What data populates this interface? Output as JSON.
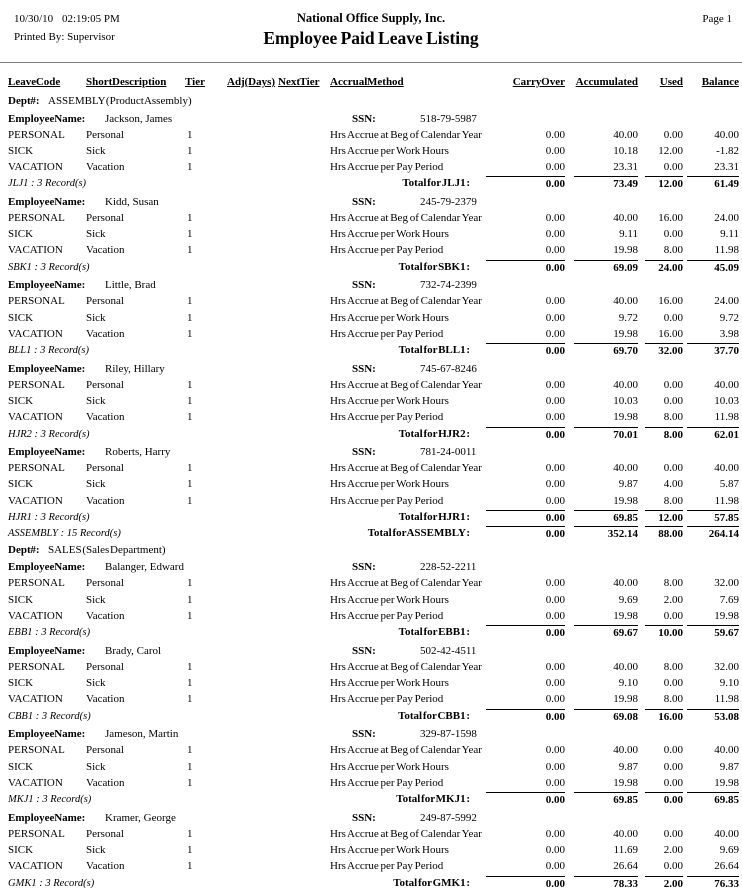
{
  "header": {
    "date": "10/30/10",
    "time": "02:19:05 PM",
    "printed_by": "Printed By: Supervisor",
    "company": "National Office Supply, Inc.",
    "title": "Employee Paid Leave Listing",
    "page": "Page 1"
  },
  "columns": {
    "leave_code": "Leave Code",
    "short_description": "Short Description",
    "tier": "Tier",
    "adj_days": "Adj (Days)",
    "next_tier": "Next Tier",
    "accrual_method": "Accrual Method",
    "carry_over": "Carry Over",
    "accumulated": "Accumulated",
    "used": "Used",
    "balance": "Balance"
  },
  "labels": {
    "dept": "Dept #:",
    "employee_name": "Employee Name:",
    "ssn": "SSN:"
  },
  "departments": [
    {
      "name": "ASSEMBLY (Product Assembly)",
      "employees": [
        {
          "name": "Jackson, James",
          "ssn": "518-79-5987",
          "rows": [
            {
              "code": "PERSONAL",
              "desc": "Personal",
              "tier": "1",
              "accrual": "Hrs Accrue at Beg of Calendar Year",
              "carry": "0.00",
              "accum": "40.00",
              "used": "0.00",
              "bal": "40.00"
            },
            {
              "code": "SICK",
              "desc": "Sick",
              "tier": "1",
              "accrual": "Hrs Accrue per Work Hours",
              "carry": "0.00",
              "accum": "10.18",
              "used": "12.00",
              "bal": "-1.82"
            },
            {
              "code": "VACATION",
              "desc": "Vacation",
              "tier": "1",
              "accrual": "Hrs Accrue per Pay Period",
              "carry": "0.00",
              "accum": "23.31",
              "used": "0.00",
              "bal": "23.31"
            }
          ],
          "record_note": "JLJ1 : 3 Record(s)",
          "total_label": "Total for JLJ1 :",
          "totals": {
            "carry": "0.00",
            "accum": "73.49",
            "used": "12.00",
            "bal": "61.49"
          }
        },
        {
          "name": "Kidd, Susan",
          "ssn": "245-79-2379",
          "rows": [
            {
              "code": "PERSONAL",
              "desc": "Personal",
              "tier": "1",
              "accrual": "Hrs Accrue at Beg of Calendar Year",
              "carry": "0.00",
              "accum": "40.00",
              "used": "16.00",
              "bal": "24.00"
            },
            {
              "code": "SICK",
              "desc": "Sick",
              "tier": "1",
              "accrual": "Hrs Accrue per Work Hours",
              "carry": "0.00",
              "accum": "9.11",
              "used": "0.00",
              "bal": "9.11"
            },
            {
              "code": "VACATION",
              "desc": "Vacation",
              "tier": "1",
              "accrual": "Hrs Accrue per Pay Period",
              "carry": "0.00",
              "accum": "19.98",
              "used": "8.00",
              "bal": "11.98"
            }
          ],
          "record_note": "SBK1 : 3 Record(s)",
          "total_label": "Total for SBK1 :",
          "totals": {
            "carry": "0.00",
            "accum": "69.09",
            "used": "24.00",
            "bal": "45.09"
          }
        },
        {
          "name": "Little, Brad",
          "ssn": "732-74-2399",
          "rows": [
            {
              "code": "PERSONAL",
              "desc": "Personal",
              "tier": "1",
              "accrual": "Hrs Accrue at Beg of Calendar Year",
              "carry": "0.00",
              "accum": "40.00",
              "used": "16.00",
              "bal": "24.00"
            },
            {
              "code": "SICK",
              "desc": "Sick",
              "tier": "1",
              "accrual": "Hrs Accrue per Work Hours",
              "carry": "0.00",
              "accum": "9.72",
              "used": "0.00",
              "bal": "9.72"
            },
            {
              "code": "VACATION",
              "desc": "Vacation",
              "tier": "1",
              "accrual": "Hrs Accrue per Pay Period",
              "carry": "0.00",
              "accum": "19.98",
              "used": "16.00",
              "bal": "3.98"
            }
          ],
          "record_note": "BLL1 : 3 Record(s)",
          "total_label": "Total for BLL1 :",
          "totals": {
            "carry": "0.00",
            "accum": "69.70",
            "used": "32.00",
            "bal": "37.70"
          }
        },
        {
          "name": "Riley, Hillary",
          "ssn": "745-67-8246",
          "rows": [
            {
              "code": "PERSONAL",
              "desc": "Personal",
              "tier": "1",
              "accrual": "Hrs Accrue at Beg of Calendar Year",
              "carry": "0.00",
              "accum": "40.00",
              "used": "0.00",
              "bal": "40.00"
            },
            {
              "code": "SICK",
              "desc": "Sick",
              "tier": "1",
              "accrual": "Hrs Accrue per Work Hours",
              "carry": "0.00",
              "accum": "10.03",
              "used": "0.00",
              "bal": "10.03"
            },
            {
              "code": "VACATION",
              "desc": "Vacation",
              "tier": "1",
              "accrual": "Hrs Accrue per Pay Period",
              "carry": "0.00",
              "accum": "19.98",
              "used": "8.00",
              "bal": "11.98"
            }
          ],
          "record_note": "HJR2 : 3 Record(s)",
          "total_label": "Total for HJR2 :",
          "totals": {
            "carry": "0.00",
            "accum": "70.01",
            "used": "8.00",
            "bal": "62.01"
          }
        },
        {
          "name": "Roberts, Harry",
          "ssn": "781-24-0011",
          "rows": [
            {
              "code": "PERSONAL",
              "desc": "Personal",
              "tier": "1",
              "accrual": "Hrs Accrue at Beg of Calendar Year",
              "carry": "0.00",
              "accum": "40.00",
              "used": "0.00",
              "bal": "40.00"
            },
            {
              "code": "SICK",
              "desc": "Sick",
              "tier": "1",
              "accrual": "Hrs Accrue per Work Hours",
              "carry": "0.00",
              "accum": "9.87",
              "used": "4.00",
              "bal": "5.87"
            },
            {
              "code": "VACATION",
              "desc": "Vacation",
              "tier": "1",
              "accrual": "Hrs Accrue per Pay Period",
              "carry": "0.00",
              "accum": "19.98",
              "used": "8.00",
              "bal": "11.98"
            }
          ],
          "record_note": "HJR1 : 3 Record(s)",
          "total_label": "Total for HJR1 :",
          "totals": {
            "carry": "0.00",
            "accum": "69.85",
            "used": "12.00",
            "bal": "57.85"
          }
        }
      ],
      "record_note": "ASSEMBLY : 15 Record(s)",
      "total_label": "Total for ASSEMBLY :",
      "totals": {
        "carry": "0.00",
        "accum": "352.14",
        "used": "88.00",
        "bal": "264.14"
      }
    },
    {
      "name": "SALES (Sales Department)",
      "employees": [
        {
          "name": "Balanger, Edward",
          "ssn": "228-52-2211",
          "rows": [
            {
              "code": "PERSONAL",
              "desc": "Personal",
              "tier": "1",
              "accrual": "Hrs Accrue at Beg of Calendar Year",
              "carry": "0.00",
              "accum": "40.00",
              "used": "8.00",
              "bal": "32.00"
            },
            {
              "code": "SICK",
              "desc": "Sick",
              "tier": "1",
              "accrual": "Hrs Accrue per Work Hours",
              "carry": "0.00",
              "accum": "9.69",
              "used": "2.00",
              "bal": "7.69"
            },
            {
              "code": "VACATION",
              "desc": "Vacation",
              "tier": "1",
              "accrual": "Hrs Accrue per Pay Period",
              "carry": "0.00",
              "accum": "19.98",
              "used": "0.00",
              "bal": "19.98"
            }
          ],
          "record_note": "EBB1 : 3 Record(s)",
          "total_label": "Total for EBB1 :",
          "totals": {
            "carry": "0.00",
            "accum": "69.67",
            "used": "10.00",
            "bal": "59.67"
          }
        },
        {
          "name": "Brady, Carol",
          "ssn": "502-42-4511",
          "rows": [
            {
              "code": "PERSONAL",
              "desc": "Personal",
              "tier": "1",
              "accrual": "Hrs Accrue at Beg of Calendar Year",
              "carry": "0.00",
              "accum": "40.00",
              "used": "8.00",
              "bal": "32.00"
            },
            {
              "code": "SICK",
              "desc": "Sick",
              "tier": "1",
              "accrual": "Hrs Accrue per Work Hours",
              "carry": "0.00",
              "accum": "9.10",
              "used": "0.00",
              "bal": "9.10"
            },
            {
              "code": "VACATION",
              "desc": "Vacation",
              "tier": "1",
              "accrual": "Hrs Accrue per Pay Period",
              "carry": "0.00",
              "accum": "19.98",
              "used": "8.00",
              "bal": "11.98"
            }
          ],
          "record_note": "CBB1 : 3 Record(s)",
          "total_label": "Total for CBB1 :",
          "totals": {
            "carry": "0.00",
            "accum": "69.08",
            "used": "16.00",
            "bal": "53.08"
          }
        },
        {
          "name": "Jameson, Martin",
          "ssn": "329-87-1598",
          "rows": [
            {
              "code": "PERSONAL",
              "desc": "Personal",
              "tier": "1",
              "accrual": "Hrs Accrue at Beg of Calendar Year",
              "carry": "0.00",
              "accum": "40.00",
              "used": "0.00",
              "bal": "40.00"
            },
            {
              "code": "SICK",
              "desc": "Sick",
              "tier": "1",
              "accrual": "Hrs Accrue per Work Hours",
              "carry": "0.00",
              "accum": "9.87",
              "used": "0.00",
              "bal": "9.87"
            },
            {
              "code": "VACATION",
              "desc": "Vacation",
              "tier": "1",
              "accrual": "Hrs Accrue per Pay Period",
              "carry": "0.00",
              "accum": "19.98",
              "used": "0.00",
              "bal": "19.98"
            }
          ],
          "record_note": "MKJ1 : 3 Record(s)",
          "total_label": "Total for MKJ1 :",
          "totals": {
            "carry": "0.00",
            "accum": "69.85",
            "used": "0.00",
            "bal": "69.85"
          }
        },
        {
          "name": "Kramer, George",
          "ssn": "249-87-5992",
          "rows": [
            {
              "code": "PERSONAL",
              "desc": "Personal",
              "tier": "1",
              "accrual": "Hrs Accrue at Beg of Calendar Year",
              "carry": "0.00",
              "accum": "40.00",
              "used": "0.00",
              "bal": "40.00"
            },
            {
              "code": "SICK",
              "desc": "Sick",
              "tier": "1",
              "accrual": "Hrs Accrue per Work Hours",
              "carry": "0.00",
              "accum": "11.69",
              "used": "2.00",
              "bal": "9.69"
            },
            {
              "code": "VACATION",
              "desc": "Vacation",
              "tier": "1",
              "accrual": "Hrs Accrue per Pay Period",
              "carry": "0.00",
              "accum": "26.64",
              "used": "0.00",
              "bal": "26.64"
            }
          ],
          "record_note": "GMK1 : 3 Record(s)",
          "total_label": "Total for GMK1 :",
          "totals": {
            "carry": "0.00",
            "accum": "78.33",
            "used": "2.00",
            "bal": "76.33"
          }
        }
      ]
    }
  ]
}
